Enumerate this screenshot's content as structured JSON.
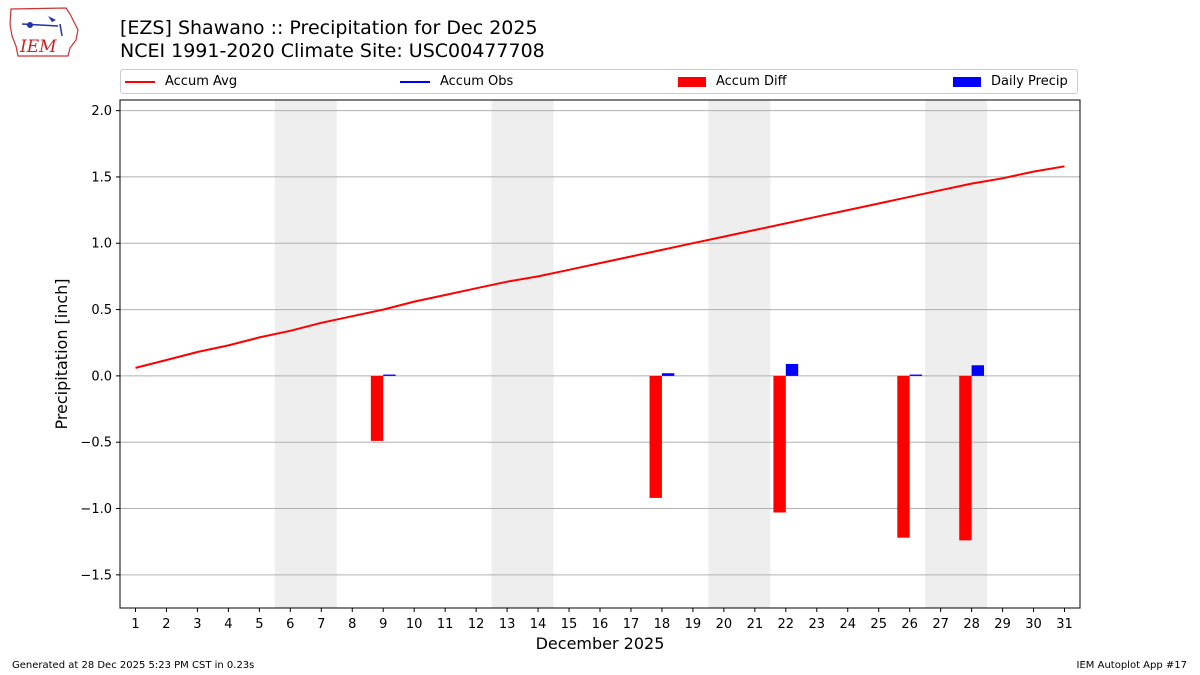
{
  "header": {
    "title_line1": "[EZS] Shawano :: Precipitation for Dec 2025",
    "title_line2": "NCEI 1991-2020 Climate Site: USC00477708"
  },
  "logo": {
    "text": "IEM",
    "icon": "iem-logo-icon"
  },
  "footer": {
    "generated": "Generated at 28 Dec 2025 5:23 PM CST in 0.23s",
    "app": "IEM Autoplot App #17"
  },
  "colors": {
    "avg": "#ff0000",
    "obs": "#0000ff",
    "diff": "#ff0000",
    "daily": "#0000ff",
    "weekend": "#eeeeee",
    "grid": "#b0b0b0"
  },
  "chart_data": {
    "type": "bar",
    "title": "[EZS] Shawano :: Precipitation for Dec 2025",
    "subtitle": "NCEI 1991-2020 Climate Site: USC00477708",
    "xlabel": "December 2025",
    "ylabel": "Precipitation [inch]",
    "ylim": [
      -1.75,
      2.08
    ],
    "yticks": [
      -1.5,
      -1.0,
      -0.5,
      0.0,
      0.5,
      1.0,
      1.5,
      2.0
    ],
    "ytick_labels": [
      "−1.5",
      "−1.0",
      "−0.5",
      "0.0",
      "0.5",
      "1.0",
      "1.5",
      "2.0"
    ],
    "grid": "horizontal",
    "legend": "top, above plot",
    "categories": [
      "1",
      "2",
      "3",
      "4",
      "5",
      "6",
      "7",
      "8",
      "9",
      "10",
      "11",
      "12",
      "13",
      "14",
      "15",
      "16",
      "17",
      "18",
      "19",
      "20",
      "21",
      "22",
      "23",
      "24",
      "25",
      "26",
      "27",
      "28",
      "29",
      "30",
      "31"
    ],
    "weekend_shading": [
      [
        6,
        7
      ],
      [
        13,
        14
      ],
      [
        20,
        21
      ],
      [
        27,
        28
      ]
    ],
    "series": [
      {
        "name": "Accum Avg",
        "kind": "line",
        "x": [
          1,
          2,
          3,
          4,
          5,
          6,
          7,
          8,
          9,
          10,
          11,
          12,
          13,
          14,
          15,
          16,
          17,
          18,
          19,
          20,
          21,
          22,
          23,
          24,
          25,
          26,
          27,
          28,
          29,
          30,
          31
        ],
        "values": [
          0.06,
          0.12,
          0.18,
          0.23,
          0.29,
          0.34,
          0.4,
          0.45,
          0.5,
          0.56,
          0.61,
          0.66,
          0.71,
          0.75,
          0.8,
          0.85,
          0.9,
          0.95,
          1.0,
          1.05,
          1.1,
          1.15,
          1.2,
          1.25,
          1.3,
          1.35,
          1.4,
          1.45,
          1.49,
          1.54,
          1.58
        ]
      },
      {
        "name": "Accum Obs",
        "kind": "line",
        "x": [],
        "values": []
      },
      {
        "name": "Accum Diff",
        "kind": "bar",
        "x": [
          9,
          18,
          22,
          26,
          28
        ],
        "values": [
          -0.49,
          -0.92,
          -1.03,
          -1.22,
          -1.24
        ]
      },
      {
        "name": "Daily Precip",
        "kind": "bar",
        "x": [
          9,
          18,
          22,
          26,
          28
        ],
        "values": [
          0.01,
          0.02,
          0.09,
          0.01,
          0.08
        ]
      }
    ]
  }
}
